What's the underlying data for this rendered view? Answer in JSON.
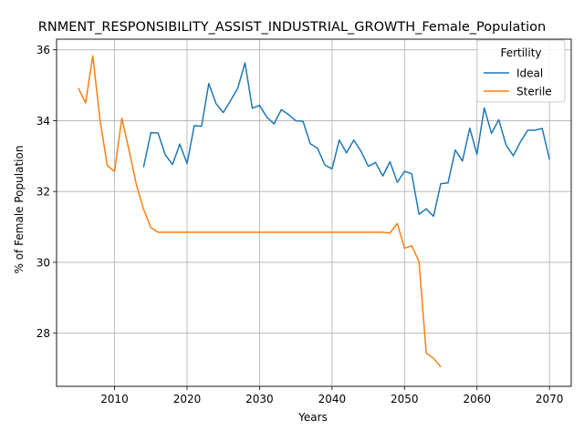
{
  "chart_data": {
    "type": "line",
    "title": "RNMENT_RESPONSIBILITY_ASSIST_INDUSTRIAL_GROWTH_Female_Population",
    "xlabel": "Years",
    "ylabel": "% of Female Population",
    "xlim": [
      2002,
      2073
    ],
    "ylim": [
      26.5,
      36.3
    ],
    "xticks": [
      2010,
      2020,
      2030,
      2040,
      2050,
      2060,
      2070
    ],
    "yticks": [
      28,
      30,
      32,
      34,
      36
    ],
    "grid": true,
    "legend": {
      "title": "Fertility",
      "placement": "top-right"
    },
    "series": [
      {
        "name": "Ideal",
        "color": "#1f77b4",
        "x": [
          2014,
          2015,
          2016,
          2017,
          2018,
          2019,
          2020,
          2021,
          2022,
          2023,
          2024,
          2025,
          2026,
          2027,
          2028,
          2029,
          2030,
          2031,
          2032,
          2033,
          2034,
          2035,
          2036,
          2037,
          2038,
          2039,
          2040,
          2041,
          2042,
          2043,
          2044,
          2045,
          2046,
          2047,
          2048,
          2049,
          2050,
          2051,
          2052,
          2053,
          2054,
          2055,
          2056,
          2057,
          2058,
          2059,
          2060,
          2061,
          2062,
          2063,
          2064,
          2065,
          2066,
          2067,
          2068,
          2069,
          2070
        ],
        "y": [
          32.68,
          33.66,
          33.65,
          33.03,
          32.76,
          33.34,
          32.79,
          33.86,
          33.84,
          35.05,
          34.48,
          34.23,
          34.56,
          34.92,
          35.63,
          34.35,
          34.43,
          34.1,
          33.91,
          34.31,
          34.17,
          34.0,
          33.98,
          33.35,
          33.22,
          32.75,
          32.64,
          33.45,
          33.09,
          33.45,
          33.14,
          32.71,
          32.82,
          32.44,
          32.84,
          32.26,
          32.57,
          32.5,
          31.36,
          31.51,
          31.3,
          32.22,
          32.24,
          33.17,
          32.86,
          33.79,
          33.05,
          34.36,
          33.64,
          34.03,
          33.32,
          33.01,
          33.4,
          33.73,
          33.73,
          33.78,
          32.9
        ]
      },
      {
        "name": "Sterile",
        "color": "#ff7f0e",
        "x": [
          2005,
          2006,
          2007,
          2008,
          2009,
          2010,
          2011,
          2012,
          2013,
          2014,
          2015,
          2016,
          2017,
          2018,
          2019,
          2020,
          2021,
          2022,
          2023,
          2024,
          2025,
          2026,
          2027,
          2028,
          2029,
          2030,
          2031,
          2032,
          2033,
          2034,
          2035,
          2036,
          2037,
          2038,
          2039,
          2040,
          2041,
          2042,
          2043,
          2044,
          2045,
          2046,
          2047,
          2048,
          2049,
          2050,
          2051,
          2052,
          2053,
          2054,
          2055
        ],
        "y": [
          34.92,
          34.5,
          35.83,
          34.0,
          32.73,
          32.57,
          34.07,
          33.17,
          32.2,
          31.5,
          30.98,
          30.85,
          30.85,
          30.85,
          30.85,
          30.85,
          30.85,
          30.85,
          30.85,
          30.85,
          30.85,
          30.85,
          30.85,
          30.85,
          30.85,
          30.85,
          30.85,
          30.85,
          30.85,
          30.85,
          30.85,
          30.85,
          30.85,
          30.85,
          30.85,
          30.85,
          30.85,
          30.85,
          30.85,
          30.85,
          30.85,
          30.85,
          30.85,
          30.83,
          31.1,
          30.4,
          30.47,
          30.02,
          27.44,
          27.29,
          27.05
        ]
      }
    ]
  }
}
